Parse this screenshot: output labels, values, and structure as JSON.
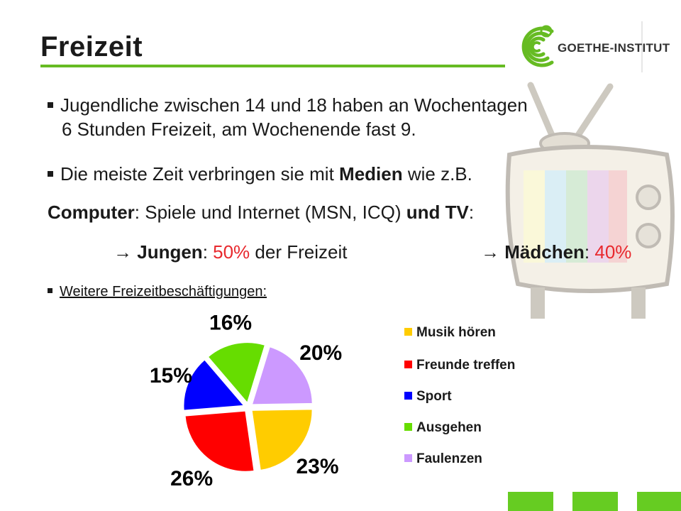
{
  "header": {
    "title": "Freizeit",
    "logo_text": "GOETHE-INSTITUT",
    "accent_color": "#66bb22"
  },
  "bullets": {
    "b1_line1": "Jugendliche zwischen 14 und 18 haben an Wochentagen",
    "b1_line2": "6 Stunden Freizeit, am Wochenende fast 9.",
    "b2_pre": "Die meiste Zeit verbringen sie mit ",
    "b2_bold": "Medien",
    "b2_post": " wie z.B.",
    "b3_bold1": "Computer",
    "b3_mid": ": Spiele und Internet (MSN, ICQ) ",
    "b3_bold2": "und TV",
    "b3_end": ":",
    "arrow": "→",
    "boys_label": "Jungen",
    "boys_sep": ": ",
    "boys_value": "50%",
    "boys_post": " der Freizeit",
    "girls_label": "Mädchen",
    "girls_sep": ": ",
    "girls_value": "40%",
    "more": "Weitere Freizeitbeschäftigungen:"
  },
  "nav": {
    "icons": [
      "nav-square-icon",
      "nav-square-icon",
      "nav-square-icon"
    ],
    "color": "#66cc22"
  },
  "chart_data": {
    "type": "pie",
    "title": "",
    "categories": [
      "Musik hören",
      "Freunde treffen",
      "Sport",
      "Ausgehen",
      "Faulenzen"
    ],
    "values": [
      23,
      26,
      15,
      16,
      20
    ],
    "value_labels": [
      "23%",
      "26%",
      "15%",
      "16%",
      "20%"
    ],
    "colors": [
      "#ffcc00",
      "#ff0000",
      "#0000ff",
      "#66dd00",
      "#cc99ff"
    ],
    "legend_placement": "right"
  }
}
